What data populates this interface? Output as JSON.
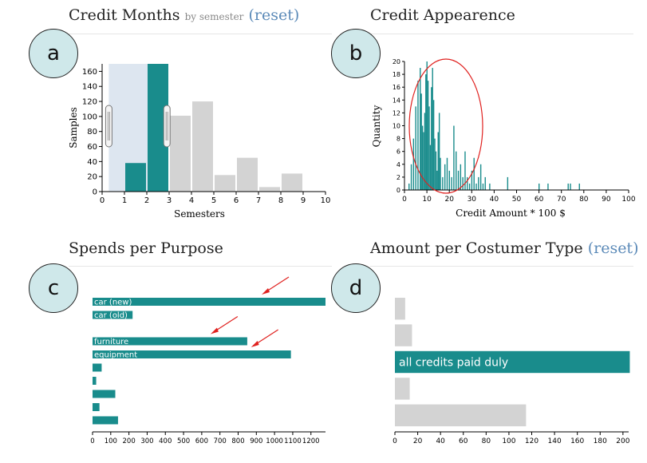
{
  "colors": {
    "teal": "#198c8c",
    "gray": "#d3d3d3",
    "highlight": "#dde6f0",
    "annotation": "#e0211f"
  },
  "badges": [
    "a",
    "b",
    "c",
    "d"
  ],
  "panels": {
    "credit_months": {
      "title": "Credit Months",
      "subtitle": "by semester",
      "reset": "(reset)"
    },
    "credit_appearance": {
      "title": "Credit Appearence"
    },
    "spends_purpose": {
      "title": "Spends per Purpose"
    },
    "customer_type": {
      "title": "Amount per Costumer Type",
      "reset": "(reset)"
    }
  },
  "chart_data": [
    {
      "id": "credit_months",
      "type": "bar",
      "xlabel": "Semesters",
      "ylabel": "Samples",
      "xlim": [
        0,
        10
      ],
      "ylim": [
        0,
        170
      ],
      "xticks": [
        0,
        1,
        2,
        3,
        4,
        5,
        6,
        7,
        8,
        9,
        10
      ],
      "yticks": [
        0,
        20,
        40,
        60,
        80,
        100,
        120,
        140,
        160
      ],
      "brush": [
        0.3,
        2.9
      ],
      "bars": [
        {
          "x": 1,
          "value": 38,
          "selected": true
        },
        {
          "x": 2,
          "value": 170,
          "selected": true
        },
        {
          "x": 3,
          "value": 101,
          "selected": false
        },
        {
          "x": 4,
          "value": 120,
          "selected": false
        },
        {
          "x": 5,
          "value": 22,
          "selected": false
        },
        {
          "x": 6,
          "value": 45,
          "selected": false
        },
        {
          "x": 7,
          "value": 6,
          "selected": false
        },
        {
          "x": 8,
          "value": 24,
          "selected": false
        }
      ]
    },
    {
      "id": "credit_appearance",
      "type": "bar",
      "xlabel": "Credit Amount * 100 $",
      "ylabel": "Quantity",
      "xlim": [
        0,
        100
      ],
      "ylim": [
        0,
        20
      ],
      "xticks": [
        0,
        10,
        20,
        30,
        40,
        50,
        60,
        70,
        80,
        90,
        100
      ],
      "xtick_labels": [
        "0",
        "10",
        "20",
        "30",
        "40",
        "50",
        "60",
        "70",
        "80",
        "90",
        "100"
      ],
      "yticks": [
        0,
        2,
        4,
        6,
        8,
        10,
        12,
        14,
        16,
        18,
        20
      ],
      "x": [
        2,
        3,
        4,
        5,
        6,
        7,
        7.5,
        8,
        8.5,
        9,
        9.5,
        10,
        10.5,
        11,
        11.5,
        12,
        12.5,
        13,
        13.5,
        14,
        14.5,
        15,
        15.5,
        16,
        17,
        18,
        19,
        20,
        21,
        22,
        23,
        24,
        25,
        26,
        27,
        28,
        29,
        30,
        31,
        32,
        33,
        34,
        35,
        36,
        38,
        46,
        60,
        64,
        73,
        74,
        78
      ],
      "values": [
        1,
        4,
        8,
        13,
        17,
        19,
        15,
        10,
        9,
        12,
        18,
        20,
        17,
        13,
        7,
        16,
        19,
        14,
        8,
        6,
        3,
        9,
        12,
        5,
        2,
        4,
        5,
        3,
        2,
        10,
        6,
        3,
        4,
        2,
        6,
        2,
        1,
        3,
        5,
        1,
        2,
        4,
        1,
        2,
        1,
        2,
        1,
        1,
        1,
        1,
        1
      ],
      "annotation": "ellipse"
    },
    {
      "id": "spends_purpose",
      "type": "bar",
      "orientation": "horizontal",
      "xlim": [
        0,
        1280
      ],
      "xticks": [
        0,
        100,
        200,
        300,
        400,
        500,
        600,
        700,
        800,
        900,
        1000,
        1100,
        1200
      ],
      "categories": [
        "car (new)",
        "car (old)",
        "",
        "furniture",
        "equipment",
        "",
        "",
        "",
        "",
        ""
      ],
      "values": [
        1280,
        220,
        0,
        850,
        1090,
        50,
        20,
        125,
        38,
        140
      ],
      "arrows_on": [
        "car (new)",
        "furniture",
        "equipment"
      ]
    },
    {
      "id": "customer_type",
      "type": "bar",
      "orientation": "horizontal",
      "xlim": [
        0,
        205
      ],
      "xticks": [
        0,
        20,
        40,
        60,
        80,
        100,
        120,
        140,
        160,
        180,
        200
      ],
      "categories": [
        "",
        "",
        "all credits paid duly",
        "",
        ""
      ],
      "values": [
        9,
        15,
        206,
        13,
        115
      ],
      "selected": [
        false,
        false,
        true,
        false,
        false
      ]
    }
  ]
}
